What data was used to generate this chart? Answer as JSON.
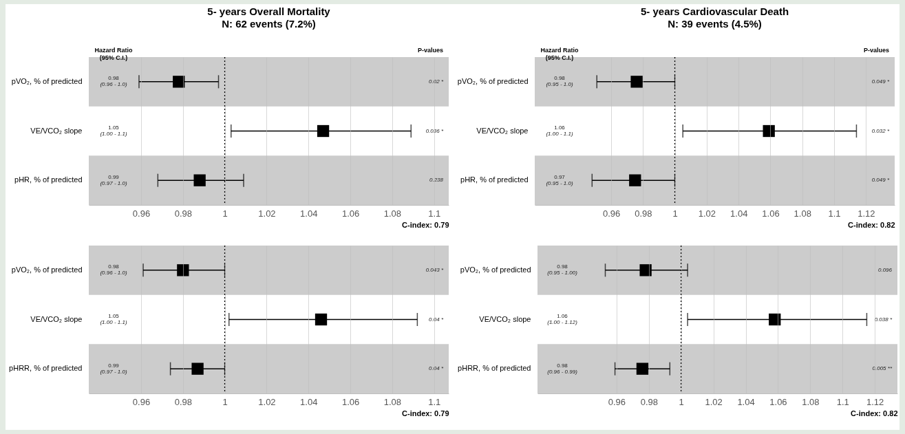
{
  "chart_data": [
    {
      "type": "scatter",
      "orientation": "horizontal",
      "title": "5- years Overall Mortality",
      "subtitle": "N: 62 events (7.2%)",
      "xlabel": "C-index: 0.79",
      "categories": [
        "pVO₂, % of predicted",
        "VE/VCO₂ slope",
        "pHR, % of predicted"
      ],
      "values": [
        0.978,
        1.047,
        0.988
      ],
      "errors": [
        [
          0.959,
          0.997
        ],
        [
          1.003,
          1.089
        ],
        [
          0.968,
          1.009
        ]
      ],
      "value_labels": [
        "0.98\n(0.96 - 1.0)",
        "1.05\n(1.00 - 1.1)",
        "0.99\n(0.97 - 1.0)"
      ],
      "color": "#000000",
      "marker": "square",
      "xlim": [
        0.935,
        1.107
      ],
      "xticks": [
        0.96,
        0.98,
        1,
        1.02,
        1.04,
        1.06,
        1.08,
        1.1
      ],
      "grid": "x",
      "ref_lines": [
        {
          "axis": "x",
          "value": 1,
          "line_style": "dotted",
          "color": "#000000"
        }
      ],
      "bands": [
        {
          "axis": "y",
          "from": "pVO₂, % of predicted",
          "to": "pVO₂, % of predicted",
          "color": "#cccccc"
        },
        {
          "axis": "y",
          "from": "pHR, % of predicted",
          "to": "pHR, % of predicted",
          "color": "#cccccc"
        }
      ],
      "annotations": [
        "Hazard Ratio\n(95% C.I.)",
        "P-values",
        "0.02 *",
        "0.036 *",
        "0.238"
      ]
    },
    {
      "type": "scatter",
      "orientation": "horizontal",
      "title": "5- years Cardiovascular  Death",
      "subtitle": "N: 39 events (4.5%)",
      "xlabel": "C-index: 0.82",
      "categories": [
        "pVO₂, % of predicted",
        "VE/VCO₂ slope",
        "pHR, % of predicted"
      ],
      "values": [
        0.976,
        1.059,
        0.975
      ],
      "errors": [
        [
          0.951,
          1.0
        ],
        [
          1.005,
          1.114
        ],
        [
          0.948,
          1.0
        ]
      ],
      "value_labels": [
        "0.98\n(0.95 - 1.0)",
        "1.06\n(1.00 - 1.1)",
        "0.97\n(0.95 - 1.0)"
      ],
      "color": "#000000",
      "marker": "square",
      "xlim": [
        0.912,
        1.138
      ],
      "xticks": [
        0.96,
        0.98,
        1,
        1.02,
        1.04,
        1.06,
        1.08,
        1.1,
        1.12
      ],
      "grid": "x",
      "ref_lines": [
        {
          "axis": "x",
          "value": 1,
          "line_style": "dotted",
          "color": "#000000"
        }
      ],
      "bands": [
        {
          "axis": "y",
          "from": "pVO₂, % of predicted",
          "to": "pVO₂, % of predicted",
          "color": "#cccccc"
        },
        {
          "axis": "y",
          "from": "pHR, % of predicted",
          "to": "pHR, % of predicted",
          "color": "#cccccc"
        }
      ],
      "annotations": [
        "Hazard Ratio\n(95% C.I.)",
        "P-values",
        "0.049 *",
        "0.032 *",
        "0.049 *"
      ]
    },
    {
      "type": "scatter",
      "orientation": "horizontal",
      "xlabel": "C-index: 0.79",
      "categories": [
        "pVO₂, % of predicted",
        "VE/VCO₂ slope",
        "pHRR, % of predicted"
      ],
      "values": [
        0.98,
        1.046,
        0.987
      ],
      "errors": [
        [
          0.961,
          1.0
        ],
        [
          1.002,
          1.092
        ],
        [
          0.974,
          1.0
        ]
      ],
      "value_labels": [
        "0.98\n(0.96 - 1.0)",
        "1.05\n(1.00 - 1.1)",
        "0.99\n(0.97 - 1.0)"
      ],
      "color": "#000000",
      "marker": "square",
      "xlim": [
        0.935,
        1.107
      ],
      "xticks": [
        0.96,
        0.98,
        1,
        1.02,
        1.04,
        1.06,
        1.08,
        1.1
      ],
      "grid": "x",
      "ref_lines": [
        {
          "axis": "x",
          "value": 1,
          "line_style": "dotted",
          "color": "#000000"
        }
      ],
      "bands": [
        {
          "axis": "y",
          "from": "pVO₂, % of predicted",
          "to": "pVO₂, % of predicted",
          "color": "#cccccc"
        },
        {
          "axis": "y",
          "from": "pHRR, % of predicted",
          "to": "pHRR, % of predicted",
          "color": "#cccccc"
        }
      ],
      "annotations": [
        "0.043 *",
        "0.04 *",
        "0.04 *"
      ]
    },
    {
      "type": "scatter",
      "orientation": "horizontal",
      "xlabel": "C-index: 0.82",
      "categories": [
        "pVO₂, % of predicted",
        "VE/VCO₂ slope",
        "pHRR, % of predicted"
      ],
      "values": [
        0.978,
        1.058,
        0.976
      ],
      "errors": [
        [
          0.953,
          1.004
        ],
        [
          1.004,
          1.115
        ],
        [
          0.959,
          0.993
        ]
      ],
      "value_labels": [
        "0.98\n(0.95 - 1.00)",
        "1.06\n(1.00 - 1.12)",
        "0.98\n(0.96 - 0.99)"
      ],
      "color": "#000000",
      "marker": "square",
      "xlim": [
        0.911,
        1.134
      ],
      "xticks": [
        0.96,
        0.98,
        1,
        1.02,
        1.04,
        1.06,
        1.08,
        1.1,
        1.12
      ],
      "grid": "x",
      "ref_lines": [
        {
          "axis": "x",
          "value": 1,
          "line_style": "dotted",
          "color": "#000000"
        }
      ],
      "bands": [
        {
          "axis": "y",
          "from": "pVO₂, % of predicted",
          "to": "pVO₂, % of predicted",
          "color": "#cccccc"
        },
        {
          "axis": "y",
          "from": "pHRR, % of predicted",
          "to": "pHRR, % of predicted",
          "color": "#cccccc"
        }
      ],
      "annotations": [
        "0.096",
        "0.038 *",
        "0.005 **"
      ]
    }
  ]
}
